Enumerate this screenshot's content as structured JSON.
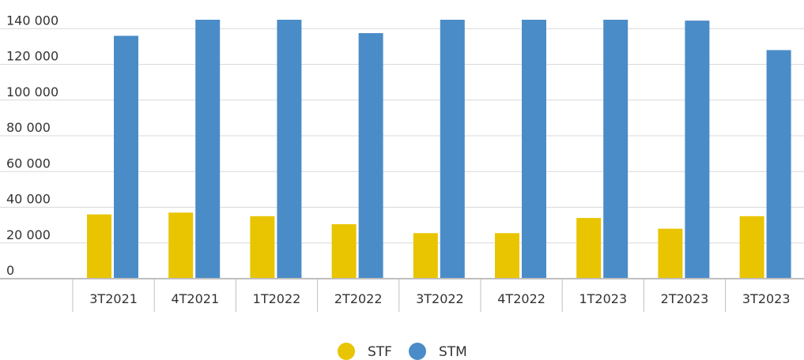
{
  "chart_data": {
    "type": "bar",
    "categories": [
      "3T2021",
      "4T2021",
      "1T2022",
      "2T2022",
      "3T2022",
      "4T2022",
      "1T2023",
      "2T2023",
      "3T2023"
    ],
    "series": [
      {
        "name": "STF",
        "color": "#E8C500",
        "values": [
          36000,
          37000,
          35000,
          30500,
          25500,
          25500,
          34000,
          28000,
          35000
        ]
      },
      {
        "name": "STM",
        "color": "#4A8CC8",
        "values": [
          136000,
          145000,
          145000,
          137500,
          145000,
          145000,
          145000,
          144500,
          128000
        ]
      }
    ],
    "y_ticks": [
      "0",
      "20 000",
      "40 000",
      "60 000",
      "80 000",
      "100 000",
      "120 000",
      "140 000"
    ],
    "y_tick_values": [
      0,
      20000,
      40000,
      60000,
      80000,
      100000,
      120000,
      140000
    ],
    "ylim": [
      0,
      145000
    ],
    "grid": true,
    "legend_position": "bottom-center",
    "title": "",
    "xlabel": "",
    "ylabel": ""
  }
}
